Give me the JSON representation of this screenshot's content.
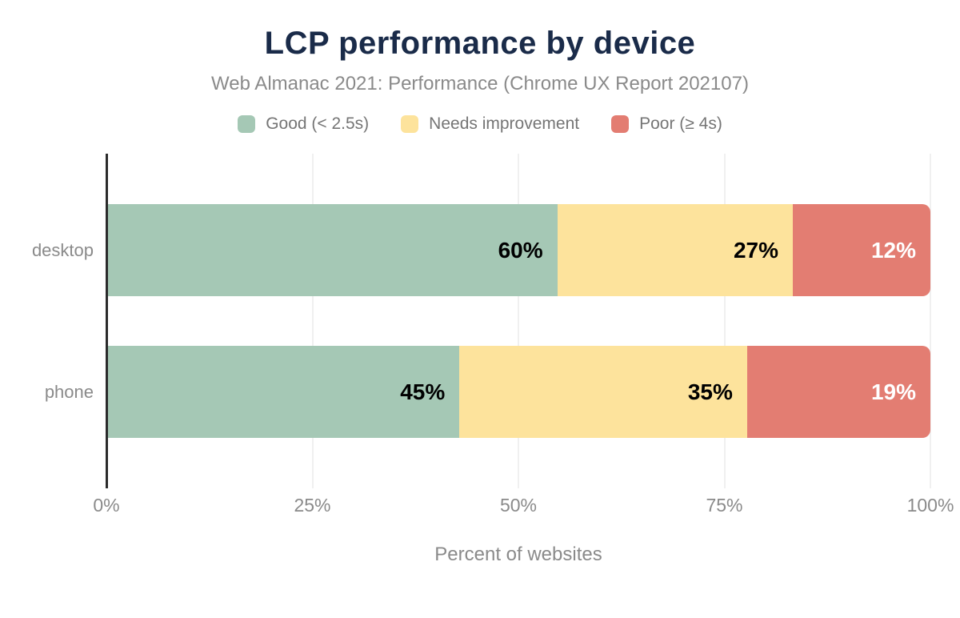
{
  "chart_data": {
    "type": "bar",
    "orientation": "horizontal-stacked",
    "title": "LCP performance by device",
    "subtitle": "Web Almanac 2021: Performance (Chrome UX Report 202107)",
    "xlabel": "Percent of websites",
    "categories": [
      "desktop",
      "phone"
    ],
    "series": [
      {
        "name": "Good (< 2.5s)",
        "color": "#a5c8b5",
        "label_color": "#000000",
        "values": [
          60,
          45
        ],
        "labels": [
          "60%",
          "45%"
        ]
      },
      {
        "name": "Needs improvement",
        "color": "#fde39c",
        "label_color": "#000000",
        "values": [
          27,
          35
        ],
        "labels": [
          "27%",
          "35%"
        ]
      },
      {
        "name": "Poor (≥ 4s)",
        "color": "#e37d72",
        "label_color": "#ffffff",
        "values": [
          12,
          19
        ],
        "labels": [
          "12%",
          "19%"
        ]
      }
    ],
    "x_ticks": [
      {
        "value": 0,
        "label": "0%"
      },
      {
        "value": 25,
        "label": "25%"
      },
      {
        "value": 50,
        "label": "50%"
      },
      {
        "value": 75,
        "label": "75%"
      },
      {
        "value": 100,
        "label": "100%"
      }
    ],
    "xlim": [
      0,
      100
    ],
    "grid": true,
    "legend_position": "top"
  },
  "styles": {
    "title_color": "#1a2b49",
    "muted_text_color": "#8a8a8a",
    "legend_text_color": "#757575",
    "axis_line_color": "#2b2b2b",
    "gridline_color": "#f0f0f0",
    "background_color": "#ffffff"
  }
}
